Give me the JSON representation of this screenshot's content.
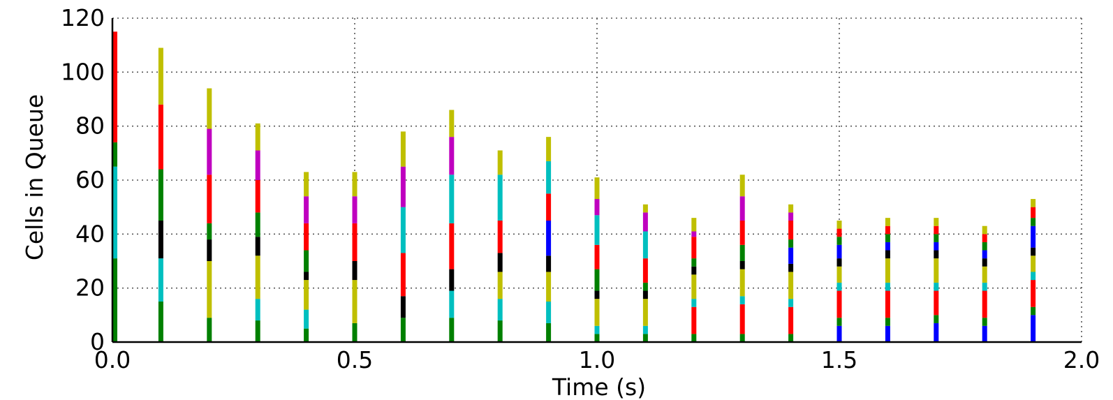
{
  "colors": {
    "g": "#008000",
    "c": "#00bfbf",
    "k": "#000000",
    "y": "#bfbf00",
    "r": "#ff0000",
    "m": "#bf00bf",
    "b": "#0000ff"
  },
  "chart_data": {
    "type": "bar",
    "title": "",
    "xlabel": "Time (s)",
    "ylabel": "Cells in Queue",
    "xlim": [
      0,
      2
    ],
    "ylim": [
      0,
      120
    ],
    "grid": true,
    "legend": "none",
    "x_ticks": [
      0.0,
      0.5,
      1.0,
      1.5,
      2.0
    ],
    "x_tick_labels": [
      "0.0",
      "0.5",
      "1.0",
      "1.5",
      "2.0"
    ],
    "y_ticks": [
      0,
      20,
      40,
      60,
      80,
      100,
      120
    ],
    "y_tick_labels": [
      "0",
      "20",
      "40",
      "60",
      "80",
      "100",
      "120"
    ],
    "bars": [
      {
        "x": 0.0,
        "segments": [
          {
            "c": "g",
            "v": 31
          },
          {
            "c": "c",
            "v": 34
          },
          {
            "c": "g",
            "v": 9
          },
          {
            "c": "r",
            "v": 41
          }
        ]
      },
      {
        "x": 0.1,
        "segments": [
          {
            "c": "g",
            "v": 15
          },
          {
            "c": "c",
            "v": 16
          },
          {
            "c": "k",
            "v": 14
          },
          {
            "c": "g",
            "v": 19
          },
          {
            "c": "r",
            "v": 24
          },
          {
            "c": "y",
            "v": 21
          }
        ]
      },
      {
        "x": 0.2,
        "segments": [
          {
            "c": "g",
            "v": 9
          },
          {
            "c": "y",
            "v": 21
          },
          {
            "c": "k",
            "v": 8
          },
          {
            "c": "g",
            "v": 6
          },
          {
            "c": "r",
            "v": 18
          },
          {
            "c": "m",
            "v": 17
          },
          {
            "c": "y",
            "v": 15
          }
        ]
      },
      {
        "x": 0.3,
        "segments": [
          {
            "c": "g",
            "v": 8
          },
          {
            "c": "c",
            "v": 8
          },
          {
            "c": "y",
            "v": 16
          },
          {
            "c": "k",
            "v": 7
          },
          {
            "c": "g",
            "v": 9
          },
          {
            "c": "r",
            "v": 12
          },
          {
            "c": "m",
            "v": 11
          },
          {
            "c": "y",
            "v": 10
          }
        ]
      },
      {
        "x": 0.4,
        "segments": [
          {
            "c": "g",
            "v": 5
          },
          {
            "c": "c",
            "v": 7
          },
          {
            "c": "y",
            "v": 11
          },
          {
            "c": "k",
            "v": 3
          },
          {
            "c": "g",
            "v": 8
          },
          {
            "c": "r",
            "v": 10
          },
          {
            "c": "m",
            "v": 10
          },
          {
            "c": "y",
            "v": 9
          }
        ]
      },
      {
        "x": 0.5,
        "segments": [
          {
            "c": "g",
            "v": 7
          },
          {
            "c": "y",
            "v": 16
          },
          {
            "c": "k",
            "v": 7
          },
          {
            "c": "r",
            "v": 14
          },
          {
            "c": "m",
            "v": 10
          },
          {
            "c": "y",
            "v": 9
          }
        ]
      },
      {
        "x": 0.6,
        "segments": [
          {
            "c": "g",
            "v": 9
          },
          {
            "c": "k",
            "v": 8
          },
          {
            "c": "r",
            "v": 16
          },
          {
            "c": "c",
            "v": 17
          },
          {
            "c": "m",
            "v": 15
          },
          {
            "c": "y",
            "v": 13
          }
        ]
      },
      {
        "x": 0.7,
        "segments": [
          {
            "c": "g",
            "v": 9
          },
          {
            "c": "c",
            "v": 10
          },
          {
            "c": "k",
            "v": 8
          },
          {
            "c": "r",
            "v": 17
          },
          {
            "c": "c",
            "v": 18
          },
          {
            "c": "m",
            "v": 14
          },
          {
            "c": "y",
            "v": 10
          }
        ]
      },
      {
        "x": 0.8,
        "segments": [
          {
            "c": "g",
            "v": 8
          },
          {
            "c": "c",
            "v": 8
          },
          {
            "c": "y",
            "v": 10
          },
          {
            "c": "k",
            "v": 7
          },
          {
            "c": "r",
            "v": 12
          },
          {
            "c": "c",
            "v": 17
          },
          {
            "c": "y",
            "v": 9
          }
        ]
      },
      {
        "x": 0.9,
        "segments": [
          {
            "c": "g",
            "v": 7
          },
          {
            "c": "c",
            "v": 8
          },
          {
            "c": "y",
            "v": 11
          },
          {
            "c": "k",
            "v": 6
          },
          {
            "c": "b",
            "v": 13
          },
          {
            "c": "r",
            "v": 10
          },
          {
            "c": "c",
            "v": 12
          },
          {
            "c": "y",
            "v": 9
          }
        ]
      },
      {
        "x": 1.0,
        "segments": [
          {
            "c": "g",
            "v": 3
          },
          {
            "c": "c",
            "v": 3
          },
          {
            "c": "y",
            "v": 10
          },
          {
            "c": "k",
            "v": 3
          },
          {
            "c": "g",
            "v": 8
          },
          {
            "c": "r",
            "v": 9
          },
          {
            "c": "c",
            "v": 11
          },
          {
            "c": "m",
            "v": 6
          },
          {
            "c": "y",
            "v": 8
          }
        ]
      },
      {
        "x": 1.1,
        "segments": [
          {
            "c": "g",
            "v": 3
          },
          {
            "c": "c",
            "v": 3
          },
          {
            "c": "y",
            "v": 10
          },
          {
            "c": "k",
            "v": 3
          },
          {
            "c": "g",
            "v": 3
          },
          {
            "c": "r",
            "v": 9
          },
          {
            "c": "c",
            "v": 10
          },
          {
            "c": "m",
            "v": 7
          },
          {
            "c": "y",
            "v": 3
          }
        ]
      },
      {
        "x": 1.2,
        "segments": [
          {
            "c": "g",
            "v": 3
          },
          {
            "c": "r",
            "v": 10
          },
          {
            "c": "c",
            "v": 3
          },
          {
            "c": "y",
            "v": 9
          },
          {
            "c": "k",
            "v": 3
          },
          {
            "c": "g",
            "v": 3
          },
          {
            "c": "r",
            "v": 8
          },
          {
            "c": "m",
            "v": 2
          },
          {
            "c": "y",
            "v": 5
          }
        ]
      },
      {
        "x": 1.3,
        "segments": [
          {
            "c": "g",
            "v": 3
          },
          {
            "c": "r",
            "v": 11
          },
          {
            "c": "c",
            "v": 3
          },
          {
            "c": "y",
            "v": 10
          },
          {
            "c": "k",
            "v": 3
          },
          {
            "c": "g",
            "v": 6
          },
          {
            "c": "r",
            "v": 9
          },
          {
            "c": "m",
            "v": 9
          },
          {
            "c": "y",
            "v": 8
          }
        ]
      },
      {
        "x": 1.4,
        "segments": [
          {
            "c": "g",
            "v": 3
          },
          {
            "c": "r",
            "v": 10
          },
          {
            "c": "c",
            "v": 3
          },
          {
            "c": "y",
            "v": 10
          },
          {
            "c": "k",
            "v": 3
          },
          {
            "c": "b",
            "v": 6
          },
          {
            "c": "g",
            "v": 3
          },
          {
            "c": "r",
            "v": 7
          },
          {
            "c": "m",
            "v": 3
          },
          {
            "c": "y",
            "v": 3
          }
        ]
      },
      {
        "x": 1.5,
        "segments": [
          {
            "c": "b",
            "v": 6
          },
          {
            "c": "g",
            "v": 3
          },
          {
            "c": "r",
            "v": 10
          },
          {
            "c": "c",
            "v": 3
          },
          {
            "c": "y",
            "v": 6
          },
          {
            "c": "k",
            "v": 3
          },
          {
            "c": "b",
            "v": 5
          },
          {
            "c": "g",
            "v": 3
          },
          {
            "c": "r",
            "v": 3
          },
          {
            "c": "y",
            "v": 3
          }
        ]
      },
      {
        "x": 1.6,
        "segments": [
          {
            "c": "b",
            "v": 6
          },
          {
            "c": "g",
            "v": 3
          },
          {
            "c": "r",
            "v": 10
          },
          {
            "c": "c",
            "v": 3
          },
          {
            "c": "y",
            "v": 9
          },
          {
            "c": "k",
            "v": 3
          },
          {
            "c": "b",
            "v": 3
          },
          {
            "c": "g",
            "v": 3
          },
          {
            "c": "r",
            "v": 3
          },
          {
            "c": "y",
            "v": 3
          }
        ]
      },
      {
        "x": 1.7,
        "segments": [
          {
            "c": "b",
            "v": 7
          },
          {
            "c": "g",
            "v": 3
          },
          {
            "c": "r",
            "v": 9
          },
          {
            "c": "c",
            "v": 3
          },
          {
            "c": "y",
            "v": 9
          },
          {
            "c": "k",
            "v": 3
          },
          {
            "c": "b",
            "v": 3
          },
          {
            "c": "g",
            "v": 3
          },
          {
            "c": "r",
            "v": 3
          },
          {
            "c": "y",
            "v": 3
          }
        ]
      },
      {
        "x": 1.8,
        "segments": [
          {
            "c": "b",
            "v": 6
          },
          {
            "c": "g",
            "v": 3
          },
          {
            "c": "r",
            "v": 10
          },
          {
            "c": "c",
            "v": 3
          },
          {
            "c": "y",
            "v": 6
          },
          {
            "c": "k",
            "v": 3
          },
          {
            "c": "b",
            "v": 3
          },
          {
            "c": "g",
            "v": 3
          },
          {
            "c": "r",
            "v": 3
          },
          {
            "c": "y",
            "v": 3
          }
        ]
      },
      {
        "x": 1.9,
        "segments": [
          {
            "c": "b",
            "v": 10
          },
          {
            "c": "g",
            "v": 3
          },
          {
            "c": "r",
            "v": 10
          },
          {
            "c": "c",
            "v": 3
          },
          {
            "c": "y",
            "v": 6
          },
          {
            "c": "k",
            "v": 3
          },
          {
            "c": "b",
            "v": 8
          },
          {
            "c": "g",
            "v": 3
          },
          {
            "c": "r",
            "v": 4
          },
          {
            "c": "y",
            "v": 3
          }
        ]
      }
    ]
  }
}
